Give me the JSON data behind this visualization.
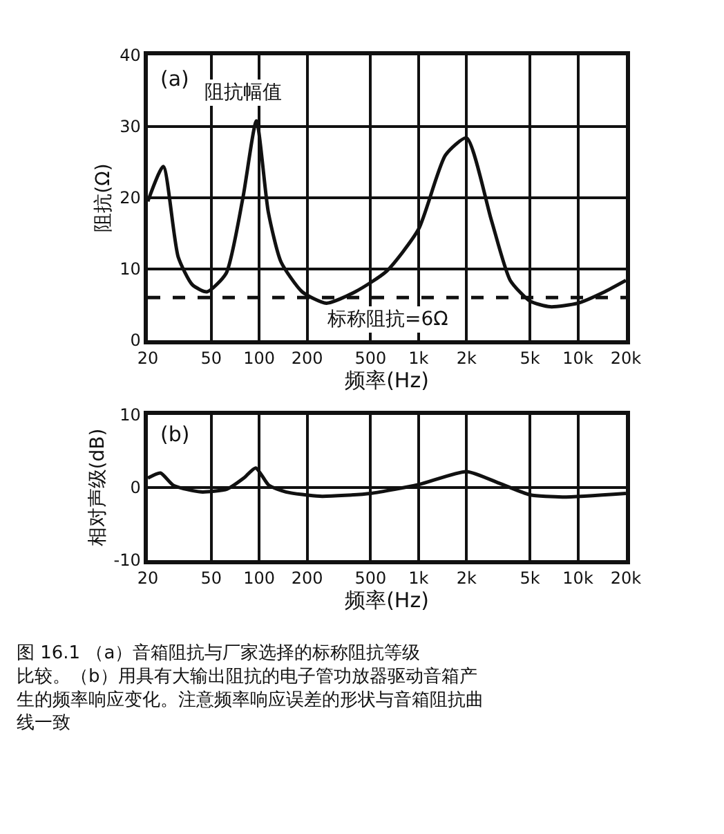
{
  "chart_data": [
    {
      "type": "line",
      "xlabel": "频率(Hz)",
      "ylabel": "阻抗(Ω)",
      "x": [
        20,
        25,
        31,
        38,
        47,
        62,
        79,
        96,
        114,
        137,
        186,
        264,
        400,
        630,
        1000,
        1475,
        2000,
        2860,
        3760,
        5000,
        6700,
        10000,
        14700,
        20000
      ],
      "series": [
        {
          "color": "#111111",
          "values": [
            19.5,
            24.4,
            11.7,
            7.8,
            6.8,
            9.4,
            20,
            30.8,
            18,
            11,
            6.8,
            5.2,
            6.8,
            9.7,
            15.6,
            26,
            28.4,
            16.9,
            8.4,
            5.5,
            4.7,
            5.2,
            6.8,
            8.4
          ]
        }
      ],
      "xlim": [
        20,
        20000
      ],
      "xticks": [
        20,
        50,
        100,
        200,
        500,
        {
          "value": 1000,
          "label": "1k"
        },
        {
          "value": 2000,
          "label": "2k"
        },
        {
          "value": 5000,
          "label": "5k"
        },
        {
          "value": 10000,
          "label": "10k"
        },
        {
          "value": 20000,
          "label": "20k"
        }
      ],
      "ylim": [
        0,
        40
      ],
      "yticks": [
        0,
        10,
        20,
        30,
        40
      ],
      "log": "x",
      "grid": true,
      "marker": "none",
      "line_style": "solid",
      "ref_lines": [
        {
          "axis": "y",
          "value": 6,
          "label": "标称阻抗=6Ω",
          "color": "#111111",
          "line_style": "dashed"
        }
      ],
      "annotations": [
        "(a)",
        {
          "text": "阻抗幅值",
          "x": 96,
          "y": 30.8
        }
      ]
    },
    {
      "type": "line",
      "xlabel": "频率(Hz)",
      "ylabel": "相对声级(dB)",
      "x": [
        20,
        24,
        29,
        43,
        63,
        80,
        95,
        115,
        147,
        240,
        500,
        1000,
        2000,
        3200,
        5000,
        8000,
        20000
      ],
      "series": [
        {
          "color": "#111111",
          "values": [
            1.3,
            2.0,
            0.3,
            -0.6,
            -0.2,
            1.3,
            2.7,
            0.3,
            -0.6,
            -1.2,
            -0.8,
            0.4,
            2.2,
            0.6,
            -1.0,
            -1.3,
            -0.8
          ]
        }
      ],
      "xlim": [
        20,
        20000
      ],
      "xticks": [
        20,
        50,
        100,
        200,
        500,
        {
          "value": 1000,
          "label": "1k"
        },
        {
          "value": 2000,
          "label": "2k"
        },
        {
          "value": 5000,
          "label": "5k"
        },
        {
          "value": 10000,
          "label": "10k"
        },
        {
          "value": 20000,
          "label": "20k"
        }
      ],
      "ylim": [
        -10,
        10
      ],
      "yticks": [
        -10,
        0,
        10
      ],
      "log": "x",
      "grid": true,
      "marker": "none",
      "line_style": "solid",
      "annotations": [
        "(b)",
        "图 16.1 （a）音箱阻抗与厂家选择的标称阻抗等级比较。（b）用具有大输出阻抗的电子管功放器驱动音箱产生的频率响应变化。注意频率响应误差的形状与音箱阻抗曲线一致"
      ]
    }
  ]
}
